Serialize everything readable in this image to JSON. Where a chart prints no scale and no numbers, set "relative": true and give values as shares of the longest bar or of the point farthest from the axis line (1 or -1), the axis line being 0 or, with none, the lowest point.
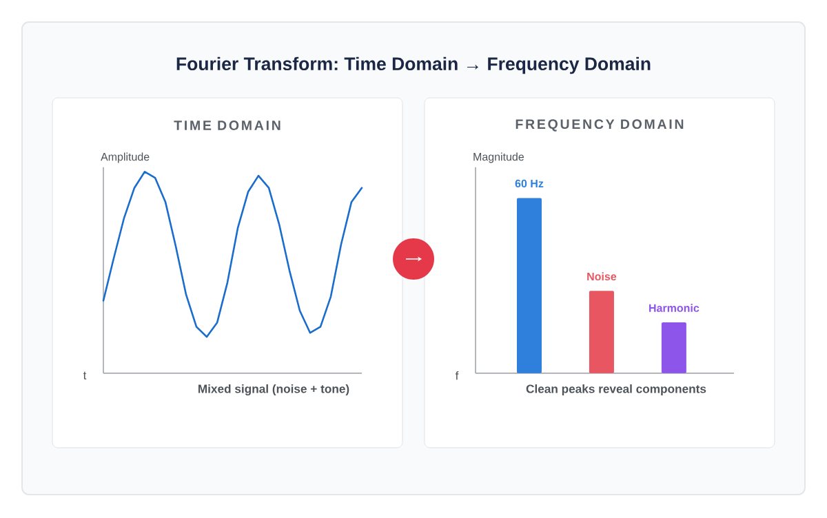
{
  "chart_data": [
    {
      "type": "line",
      "title": "Fourier Transform: Time Domain → Frequency Domain",
      "subtitle": "TIME DOMAIN",
      "xlabel": "t",
      "ylabel": "Amplitude",
      "annotations": [
        "Mixed signal (noise + tone)"
      ],
      "categories": [
        null,
        null,
        null,
        null,
        null,
        null,
        null,
        null,
        null,
        null,
        null,
        null,
        null,
        null,
        null,
        null,
        null,
        null,
        null,
        null,
        null,
        null,
        null,
        null,
        null,
        null
      ],
      "relative": true,
      "tick_labels": false,
      "series": [
        {
          "color": "#1a6dcc",
          "values": [
            0.36,
            0.57,
            0.77,
            0.92,
            1.0,
            0.97,
            0.85,
            0.63,
            0.39,
            0.23,
            0.18,
            0.25,
            0.45,
            0.72,
            0.9,
            0.98,
            0.92,
            0.74,
            0.51,
            0.31,
            0.2,
            0.23,
            0.38,
            0.64,
            0.85,
            0.92
          ]
        }
      ]
    },
    {
      "type": "bar",
      "subtitle": "FREQUENCY DOMAIN",
      "xlabel": "f",
      "ylabel": "Magnitude",
      "annotations": [
        "Clean peaks reveal components"
      ],
      "categories": [
        "60 Hz",
        "Noise",
        "Harmonic"
      ],
      "values": [
        1.0,
        0.47,
        0.29
      ],
      "colors": [
        "#2f80dc",
        "#e85661",
        "#8e55ea"
      ],
      "relative": true,
      "tick_labels": false
    }
  ]
}
